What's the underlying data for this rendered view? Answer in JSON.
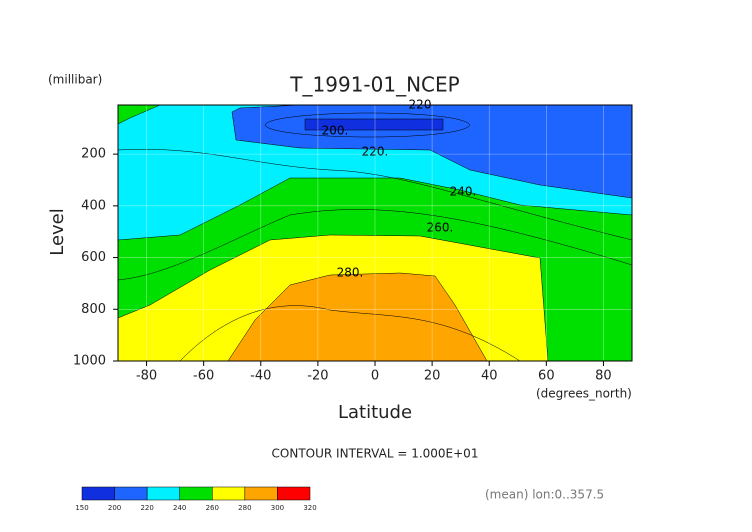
{
  "chart_data": {
    "type": "contour",
    "title": "T_1991-01_NCEP",
    "ylabel": "Level",
    "yunit": "(millibar)",
    "xlabel": "Latitude",
    "xunit": "(degrees_north)",
    "xlim": [
      -90,
      90
    ],
    "ylim": [
      1000,
      10
    ],
    "xticks": [
      -80,
      -60,
      -40,
      -20,
      0,
      20,
      40,
      60,
      80
    ],
    "yticks": [
      200,
      400,
      600,
      800,
      1000
    ],
    "grid": true,
    "levels": [
      150,
      200,
      220,
      240,
      260,
      280,
      300,
      320
    ],
    "colors": [
      "#1030e0",
      "#1e64ff",
      "#00f0ff",
      "#00e000",
      "#ffff00",
      "#ffa500",
      "#ff0000"
    ],
    "contour_labels": [
      220,
      {
        "value": 200,
        "label": "200."
      },
      {
        "value": 220,
        "label": "220."
      },
      {
        "value": 240,
        "label": "240."
      },
      {
        "value": 260,
        "label": "260."
      },
      {
        "value": 280,
        "label": "280."
      }
    ],
    "annotations": [
      "CONTOUR INTERVAL = 1.000E+01",
      "(mean) lon:0..357.5"
    ]
  }
}
